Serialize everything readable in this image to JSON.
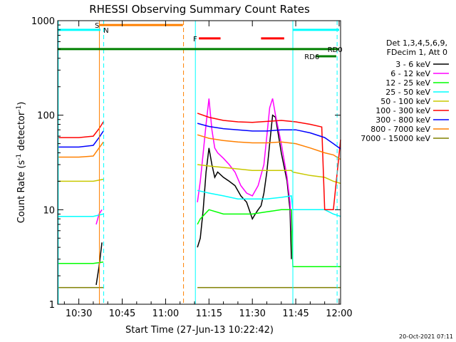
{
  "chart_data": {
    "type": "line",
    "title": "RHESSI Observing Summary Count Rates",
    "xlabel": "Start Time (27-Jun-13 10:22:42)",
    "ylabel": "Count Rate (s",
    "ylabel_sup": "-1",
    "ylabel_rest": " detector",
    "ylabel_end": ")",
    "y_scale": "log",
    "xlim_min": [
      22.7,
      120.5
    ],
    "ylim": [
      1,
      1000
    ],
    "x_ticks": [
      {
        "m": 30,
        "label": "10:30"
      },
      {
        "m": 45,
        "label": "10:45"
      },
      {
        "m": 60,
        "label": "11:00"
      },
      {
        "m": 75,
        "label": "11:15"
      },
      {
        "m": 90,
        "label": "11:30"
      },
      {
        "m": 105,
        "label": "11:45"
      },
      {
        "m": 120,
        "label": "12:00"
      }
    ],
    "y_ticks": [
      {
        "v": 1,
        "label": "1"
      },
      {
        "v": 10,
        "label": "10"
      },
      {
        "v": 100,
        "label": "100"
      },
      {
        "v": 1000,
        "label": "1000"
      }
    ],
    "legend_header": [
      "Det 1,3,4,5,6,9,",
      "FDecim 1, Att 0"
    ],
    "legend_position": "right",
    "series": [
      {
        "name": "3 - 6 keV",
        "color": "#000000",
        "x": [
          22.7,
          35,
          36,
          37,
          38,
          38.6,
          70.5,
          71,
          72,
          73,
          74,
          75,
          76,
          77,
          78,
          80,
          82,
          84,
          86,
          88,
          90,
          91,
          92,
          93,
          94,
          95,
          96,
          97,
          98,
          100,
          102,
          103,
          103.5,
          104,
          120.5
        ],
        "y": [
          null,
          null,
          1.6,
          2.5,
          4.5,
          null,
          null,
          4,
          5,
          10,
          25,
          45,
          30,
          22,
          25,
          22,
          20,
          18,
          14,
          12,
          8,
          9,
          10,
          11,
          15,
          25,
          50,
          100,
          95,
          40,
          20,
          10,
          3,
          null,
          null
        ]
      },
      {
        "name": "6 - 12 keV",
        "color": "#ff00ff",
        "x": [
          22.7,
          35,
          36,
          37,
          38,
          38.6,
          70.5,
          71,
          72,
          73,
          74,
          75,
          76,
          77,
          78,
          80,
          82,
          84,
          86,
          88,
          90,
          92,
          94,
          95,
          96,
          97,
          98,
          100,
          102,
          103,
          103.5,
          104,
          120.5
        ],
        "y": [
          null,
          null,
          7,
          9,
          10,
          null,
          null,
          12,
          20,
          40,
          80,
          150,
          70,
          45,
          40,
          35,
          30,
          25,
          18,
          15,
          14,
          18,
          30,
          60,
          120,
          150,
          100,
          50,
          22,
          12,
          6,
          null,
          null
        ]
      },
      {
        "name": "12 - 25 keV",
        "color": "#00ff00",
        "x": [
          22.7,
          30,
          35,
          38.5,
          70.5,
          71,
          72,
          75,
          80,
          85,
          90,
          95,
          100,
          103.5,
          104,
          110,
          115,
          118,
          120.5
        ],
        "y": [
          2.7,
          2.7,
          2.7,
          2.8,
          null,
          7,
          8,
          10,
          9,
          9,
          9,
          9.5,
          10,
          10,
          2.5,
          2.5,
          2.5,
          2.5,
          2.5
        ]
      },
      {
        "name": "25 - 50 keV",
        "color": "#00ffff",
        "x": [
          22.7,
          30,
          35,
          38.5,
          70.5,
          71,
          75,
          80,
          85,
          90,
          95,
          100,
          103.5,
          104,
          110,
          115,
          118,
          120.5
        ],
        "y": [
          8.5,
          8.5,
          8.5,
          9,
          null,
          16,
          15,
          14,
          13,
          13,
          13,
          13.5,
          14,
          10,
          10,
          10,
          9,
          8.5
        ]
      },
      {
        "name": "50 - 100 keV",
        "color": "#c8c800",
        "x": [
          22.7,
          30,
          35,
          38.5,
          70.5,
          71,
          75,
          80,
          85,
          90,
          95,
          100,
          103.5,
          104,
          110,
          115,
          118,
          120.5
        ],
        "y": [
          20,
          20,
          20,
          21,
          null,
          30,
          29,
          28,
          27,
          26,
          26,
          26,
          26,
          25,
          23,
          22,
          20,
          19
        ]
      },
      {
        "name": "100 - 300 keV",
        "color": "#ff0000",
        "x": [
          22.7,
          30,
          35,
          37,
          38.5,
          70.5,
          71,
          75,
          80,
          85,
          90,
          95,
          100,
          105,
          110,
          114,
          115,
          118,
          120.5
        ],
        "y": [
          58,
          58,
          60,
          72,
          85,
          null,
          105,
          95,
          88,
          85,
          84,
          86,
          88,
          85,
          80,
          75,
          10,
          10,
          55
        ]
      },
      {
        "name": "300 - 800 keV",
        "color": "#0000ff",
        "x": [
          22.7,
          30,
          35,
          37,
          38.5,
          70.5,
          71,
          75,
          80,
          85,
          90,
          95,
          100,
          105,
          110,
          115,
          118,
          120.5
        ],
        "y": [
          46,
          46,
          48,
          58,
          68,
          null,
          82,
          76,
          72,
          70,
          68,
          68,
          70,
          70,
          65,
          58,
          50,
          44
        ]
      },
      {
        "name": "800 - 7000 keV",
        "color": "#ff8000",
        "x": [
          22.7,
          30,
          35,
          37,
          38.5,
          70.5,
          71,
          75,
          80,
          85,
          90,
          95,
          100,
          105,
          110,
          115,
          118,
          120.5
        ],
        "y": [
          36,
          36,
          37,
          45,
          52,
          null,
          62,
          57,
          54,
          52,
          51,
          51,
          52,
          50,
          45,
          40,
          38,
          34
        ]
      },
      {
        "name": "7000 - 15000 keV",
        "color": "#808000",
        "x": [
          22.7,
          30,
          35,
          38.5,
          70.5,
          71,
          80,
          90,
          100,
          105,
          110,
          115,
          120.5
        ],
        "y": [
          1.5,
          1.5,
          1.5,
          1.5,
          null,
          1.5,
          1.5,
          1.5,
          1.5,
          1.5,
          1.5,
          1.5,
          1.5
        ]
      }
    ],
    "state_bars": [
      {
        "label": "S",
        "color": "#ff8000",
        "y": 900,
        "x0": 37,
        "x1": 66,
        "label_x": 35.5
      },
      {
        "label": "N",
        "color": "#00ffff",
        "y": 800,
        "x0": 22.7,
        "x1": 37.5,
        "label_x": 38.5
      },
      {
        "label": "N",
        "color": "#00ffff",
        "y": 800,
        "x0": 104,
        "x1": 120,
        "label_x": null
      },
      {
        "label": "F",
        "color": "#ff0000",
        "y": 650,
        "x0": 71.5,
        "x1": 79,
        "label_x": 69.5
      },
      {
        "label": "",
        "color": "#ff0000",
        "y": 650,
        "x0": 93,
        "x1": 101,
        "label_x": null
      },
      {
        "label": "RD0",
        "color": "#008000",
        "y": 500,
        "x0": 22.7,
        "x1": 120,
        "label_x": 116
      },
      {
        "label": "RD6",
        "color": "#008000",
        "y": 420,
        "x0": 112,
        "x1": 119,
        "label_x": 108
      }
    ],
    "vertical_markers": [
      {
        "m": 22.9,
        "color": "#00ffff",
        "style": "solid"
      },
      {
        "m": 37.1,
        "color": "#ff8000",
        "style": "solid"
      },
      {
        "m": 38.6,
        "color": "#00ffff",
        "style": "dashed"
      },
      {
        "m": 66.2,
        "color": "#ff8000",
        "style": "dashed"
      },
      {
        "m": 70.3,
        "color": "#00ffff",
        "style": "solid"
      },
      {
        "m": 104.0,
        "color": "#00ffff",
        "style": "solid"
      },
      {
        "m": 119.3,
        "color": "#00ffff",
        "style": "dashed"
      }
    ],
    "timestamp": "20-Oct-2021 07:11"
  }
}
